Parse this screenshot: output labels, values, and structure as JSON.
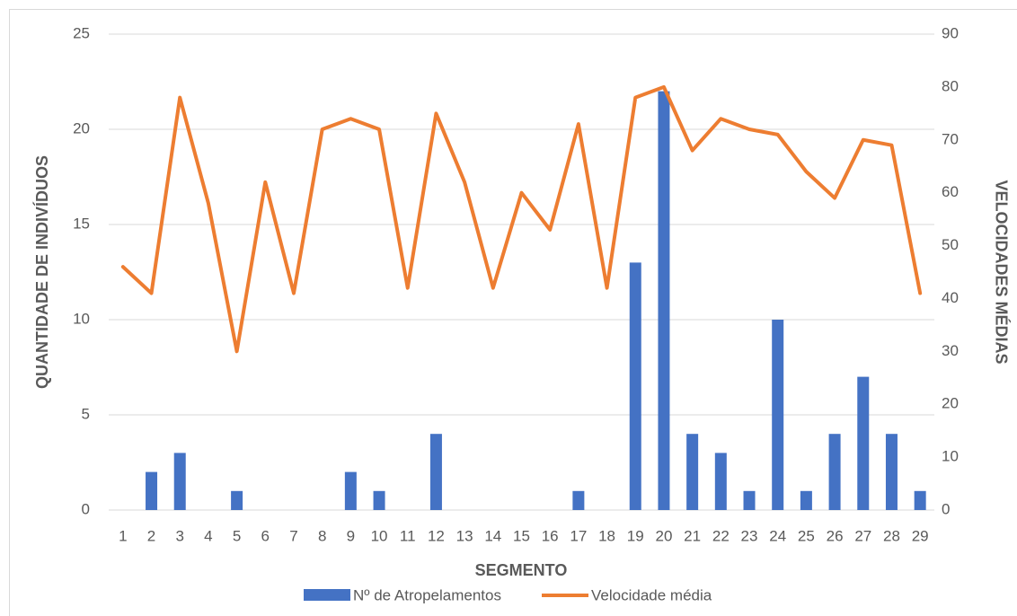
{
  "chart_data": {
    "type": "combo",
    "categories": [
      1,
      2,
      3,
      4,
      5,
      6,
      7,
      8,
      9,
      10,
      11,
      12,
      13,
      14,
      15,
      16,
      17,
      18,
      19,
      20,
      21,
      22,
      23,
      24,
      25,
      26,
      27,
      28,
      29
    ],
    "series": [
      {
        "name": "Nº de Atropelamentos",
        "type": "bar",
        "color": "#4472c4",
        "axis": "y",
        "values": [
          0,
          2,
          3,
          0,
          1,
          0,
          0,
          0,
          2,
          1,
          0,
          4,
          0,
          0,
          0,
          0,
          1,
          0,
          13,
          22,
          4,
          3,
          1,
          10,
          1,
          4,
          7,
          4,
          1
        ]
      },
      {
        "name": "Velocidade média",
        "type": "line",
        "color": "#ed7d31",
        "axis": "y2",
        "values": [
          46,
          41,
          78,
          58,
          30,
          62,
          41,
          72,
          74,
          72,
          42,
          75,
          62,
          42,
          60,
          53,
          73,
          42,
          78,
          80,
          68,
          74,
          72,
          71,
          64,
          59,
          70,
          69,
          41
        ]
      }
    ],
    "xlabel": "SEGMENTO",
    "ylabel": "QUANTIDADE DE INDIVÍDUOS",
    "y2label": "VELOCIDADES MÉDIAS",
    "ylim": [
      0,
      25
    ],
    "yticks": [
      0,
      5,
      10,
      15,
      20,
      25
    ],
    "y2lim": [
      0,
      90
    ],
    "y2ticks": [
      0,
      10,
      20,
      30,
      40,
      50,
      60,
      70,
      80,
      90
    ],
    "grid": true,
    "legend": "bottom"
  }
}
